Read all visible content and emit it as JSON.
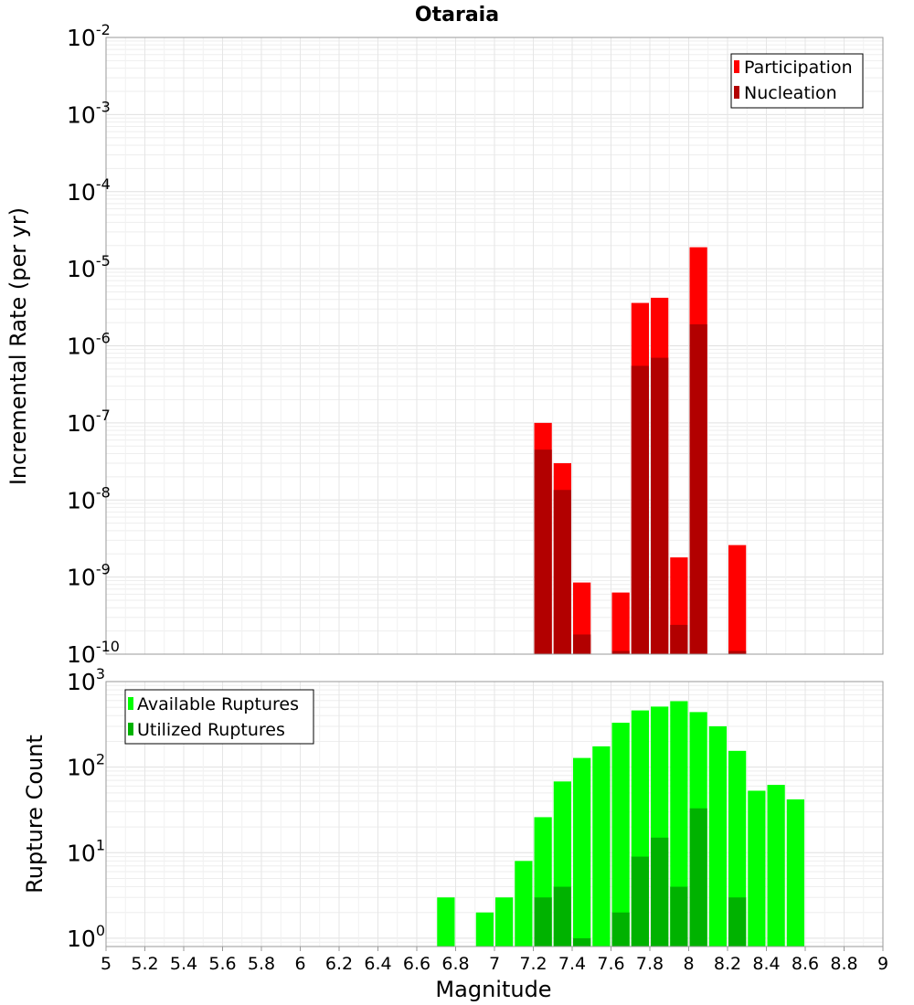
{
  "chart_data": [
    {
      "type": "bar",
      "title": "Otaraia",
      "xlabel": "",
      "ylabel": "Incremental Rate (per yr)",
      "yscale": "log",
      "ylim": [
        1e-10,
        0.01
      ],
      "xlim": [
        5,
        9
      ],
      "bar_width": 0.1,
      "legend": {
        "placement": "top-right"
      },
      "grid": true,
      "y_ticks": [
        {
          "base": "10",
          "exp": "-2"
        },
        {
          "base": "10",
          "exp": "-3"
        },
        {
          "base": "10",
          "exp": "-4"
        },
        {
          "base": "10",
          "exp": "-5"
        },
        {
          "base": "10",
          "exp": "-6"
        },
        {
          "base": "10",
          "exp": "-7"
        },
        {
          "base": "10",
          "exp": "-8"
        },
        {
          "base": "10",
          "exp": "-9"
        },
        {
          "base": "10",
          "exp": "-10"
        }
      ],
      "series": [
        {
          "name": "Participation",
          "color": "#ff0000",
          "x": [
            7.25,
            7.35,
            7.45,
            7.65,
            7.75,
            7.85,
            7.95,
            8.05,
            8.25
          ],
          "values": [
            1e-07,
            3e-08,
            8.5e-10,
            6.3e-10,
            3.6e-06,
            4.2e-06,
            1.8e-09,
            1.9e-05,
            2.6e-09
          ]
        },
        {
          "name": "Nucleation",
          "color": "#b20000",
          "x": [
            7.25,
            7.35,
            7.45,
            7.65,
            7.75,
            7.85,
            7.95,
            8.05,
            8.25
          ],
          "values": [
            4.5e-08,
            1.35e-08,
            1.8e-10,
            1.1e-10,
            5.5e-07,
            7e-07,
            2.4e-10,
            1.9e-06,
            1.1e-10
          ]
        }
      ]
    },
    {
      "type": "bar",
      "title": "",
      "xlabel": "Magnitude",
      "ylabel": "Rupture Count",
      "yscale": "log",
      "ylim": [
        0.8,
        1000
      ],
      "xlim": [
        5,
        9
      ],
      "bar_width": 0.1,
      "legend": {
        "placement": "top-left"
      },
      "grid": true,
      "x_ticks": [
        "5",
        "5.2",
        "5.4",
        "5.6",
        "5.8",
        "6",
        "6.2",
        "6.4",
        "6.6",
        "6.8",
        "7",
        "7.2",
        "7.4",
        "7.6",
        "7.8",
        "8",
        "8.2",
        "8.4",
        "8.6",
        "8.8",
        "9"
      ],
      "y_ticks": [
        {
          "base": "10",
          "exp": "3"
        },
        {
          "base": "10",
          "exp": "2"
        },
        {
          "base": "10",
          "exp": "1"
        },
        {
          "base": "10",
          "exp": "0"
        }
      ],
      "series": [
        {
          "name": "Available Ruptures",
          "color": "#00ff00",
          "x": [
            6.75,
            6.95,
            7.05,
            7.15,
            7.25,
            7.35,
            7.45,
            7.55,
            7.65,
            7.75,
            7.85,
            7.95,
            8.05,
            8.15,
            8.25,
            8.35,
            8.45,
            8.55
          ],
          "values": [
            3,
            2,
            3,
            8,
            26,
            68,
            128,
            175,
            330,
            460,
            510,
            590,
            440,
            300,
            155,
            53,
            62,
            42
          ]
        },
        {
          "name": "Utilized Ruptures",
          "color": "#00b200",
          "x": [
            7.25,
            7.35,
            7.45,
            7.65,
            7.75,
            7.85,
            7.95,
            8.05,
            8.25
          ],
          "values": [
            3,
            4,
            1,
            2,
            9,
            15,
            4,
            33,
            3
          ]
        }
      ]
    }
  ]
}
